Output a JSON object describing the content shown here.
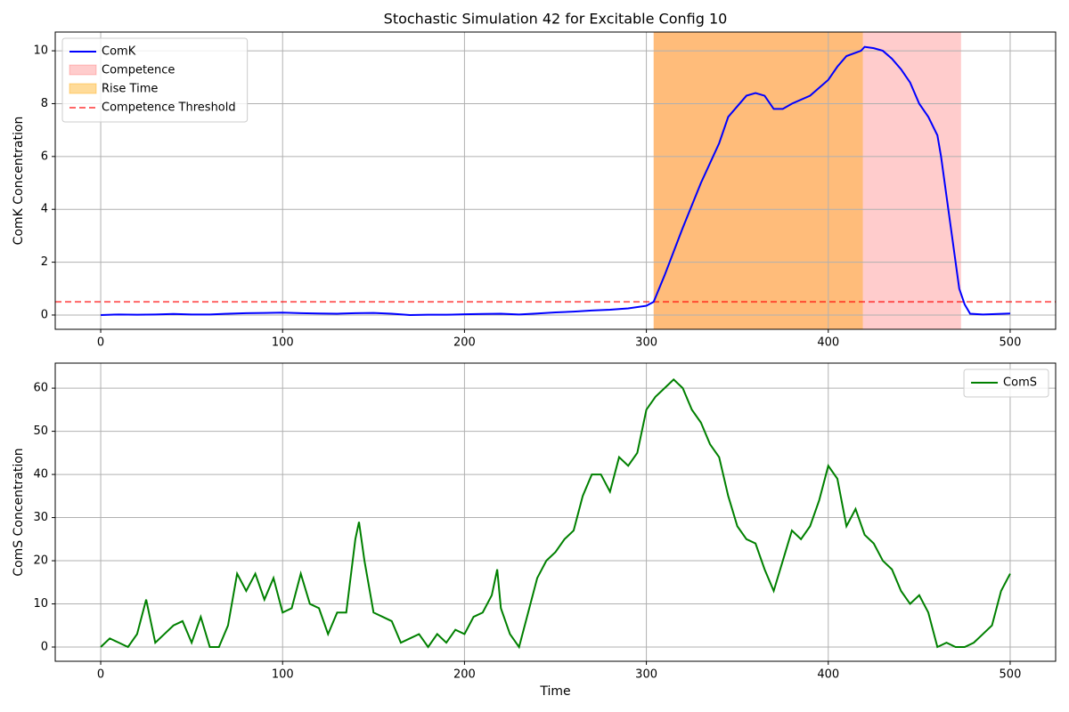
{
  "chart_data": [
    {
      "type": "line",
      "title": "Stochastic Simulation 42 for Excitable Config 10",
      "ylabel": "ComK Concentration",
      "x": [
        0,
        10,
        20,
        30,
        40,
        50,
        60,
        70,
        80,
        90,
        100,
        110,
        120,
        130,
        140,
        150,
        160,
        170,
        180,
        190,
        200,
        210,
        220,
        230,
        240,
        250,
        260,
        270,
        280,
        290,
        300,
        304,
        310,
        320,
        330,
        340,
        345,
        350,
        355,
        360,
        365,
        370,
        375,
        380,
        390,
        400,
        405,
        410,
        418,
        420,
        425,
        430,
        435,
        440,
        445,
        450,
        455,
        460,
        462,
        465,
        468,
        470,
        472,
        475,
        478,
        485,
        500
      ],
      "series": [
        {
          "name": "ComK",
          "color": "#0000ff",
          "values": [
            0,
            0.02,
            0.01,
            0.02,
            0.04,
            0.02,
            0.02,
            0.05,
            0.07,
            0.08,
            0.09,
            0.07,
            0.06,
            0.05,
            0.07,
            0.08,
            0.05,
            0.0,
            0.01,
            0.01,
            0.03,
            0.04,
            0.05,
            0.02,
            0.06,
            0.1,
            0.13,
            0.17,
            0.2,
            0.25,
            0.35,
            0.5,
            1.5,
            3.3,
            5.0,
            6.5,
            7.5,
            7.9,
            8.3,
            8.4,
            8.3,
            7.8,
            7.8,
            8.0,
            8.3,
            8.9,
            9.4,
            9.8,
            10.0,
            10.15,
            10.1,
            10.0,
            9.7,
            9.3,
            8.8,
            8.0,
            7.5,
            6.8,
            6.0,
            4.5,
            3.0,
            2.0,
            1.0,
            0.4,
            0.05,
            0.02,
            0.06
          ]
        }
      ],
      "spans": [
        {
          "name": "Competence",
          "color": "#ff0000",
          "alpha": 0.2,
          "x": [
            304,
            473
          ]
        },
        {
          "name": "Rise Time",
          "color": "#ffa500",
          "alpha": 0.4,
          "x": [
            304,
            419
          ]
        }
      ],
      "hlines": [
        {
          "name": "Competence Threshold",
          "color": "#ff0000",
          "alpha": 0.6,
          "value": 0.5
        }
      ],
      "xlim": [
        -25,
        525
      ],
      "xticks": [
        0,
        100,
        200,
        300,
        400,
        500
      ],
      "ylim": [
        -0.54,
        10.71
      ],
      "yticks": [
        0,
        2,
        4,
        6,
        8,
        10
      ],
      "grid": true,
      "legend": "upper left"
    },
    {
      "type": "line",
      "xlabel": "Time",
      "ylabel": "ComS Concentration",
      "x": [
        0,
        5,
        10,
        15,
        20,
        25,
        30,
        35,
        40,
        45,
        50,
        55,
        60,
        65,
        70,
        75,
        80,
        85,
        90,
        95,
        100,
        105,
        110,
        115,
        120,
        125,
        130,
        135,
        140,
        142,
        145,
        150,
        155,
        160,
        165,
        170,
        175,
        180,
        185,
        190,
        195,
        200,
        205,
        210,
        215,
        218,
        220,
        225,
        230,
        235,
        240,
        245,
        250,
        255,
        260,
        265,
        270,
        275,
        280,
        285,
        290,
        295,
        300,
        305,
        310,
        315,
        320,
        325,
        330,
        335,
        340,
        345,
        350,
        355,
        360,
        365,
        370,
        375,
        380,
        385,
        390,
        395,
        400,
        405,
        410,
        415,
        420,
        425,
        430,
        435,
        440,
        445,
        450,
        455,
        460,
        465,
        470,
        475,
        480,
        485,
        490,
        495,
        500
      ],
      "series": [
        {
          "name": "ComS",
          "color": "#008000",
          "values": [
            0,
            2,
            1,
            0,
            3,
            11,
            1,
            3,
            5,
            6,
            1,
            7,
            0,
            0,
            5,
            17,
            13,
            17,
            11,
            16,
            8,
            9,
            17,
            10,
            9,
            3,
            8,
            8,
            25,
            29,
            20,
            8,
            7,
            6,
            1,
            2,
            3,
            0,
            3,
            1,
            4,
            3,
            7,
            8,
            12,
            18,
            9,
            3,
            0,
            8,
            16,
            20,
            22,
            25,
            27,
            35,
            40,
            40,
            36,
            44,
            42,
            45,
            55,
            58,
            60,
            62,
            60,
            55,
            52,
            47,
            44,
            35,
            28,
            25,
            24,
            18,
            13,
            20,
            27,
            25,
            28,
            34,
            42,
            39,
            28,
            32,
            26,
            24,
            20,
            18,
            13,
            10,
            12,
            8,
            0,
            1,
            0,
            0,
            1,
            3,
            5,
            13,
            17
          ]
        }
      ],
      "xlim": [
        -25,
        525
      ],
      "xticks": [
        0,
        100,
        200,
        300,
        400,
        500
      ],
      "ylim": [
        -3.3,
        65.8
      ],
      "yticks": [
        0,
        10,
        20,
        30,
        40,
        50,
        60
      ],
      "grid": true,
      "legend": "upper right"
    }
  ]
}
